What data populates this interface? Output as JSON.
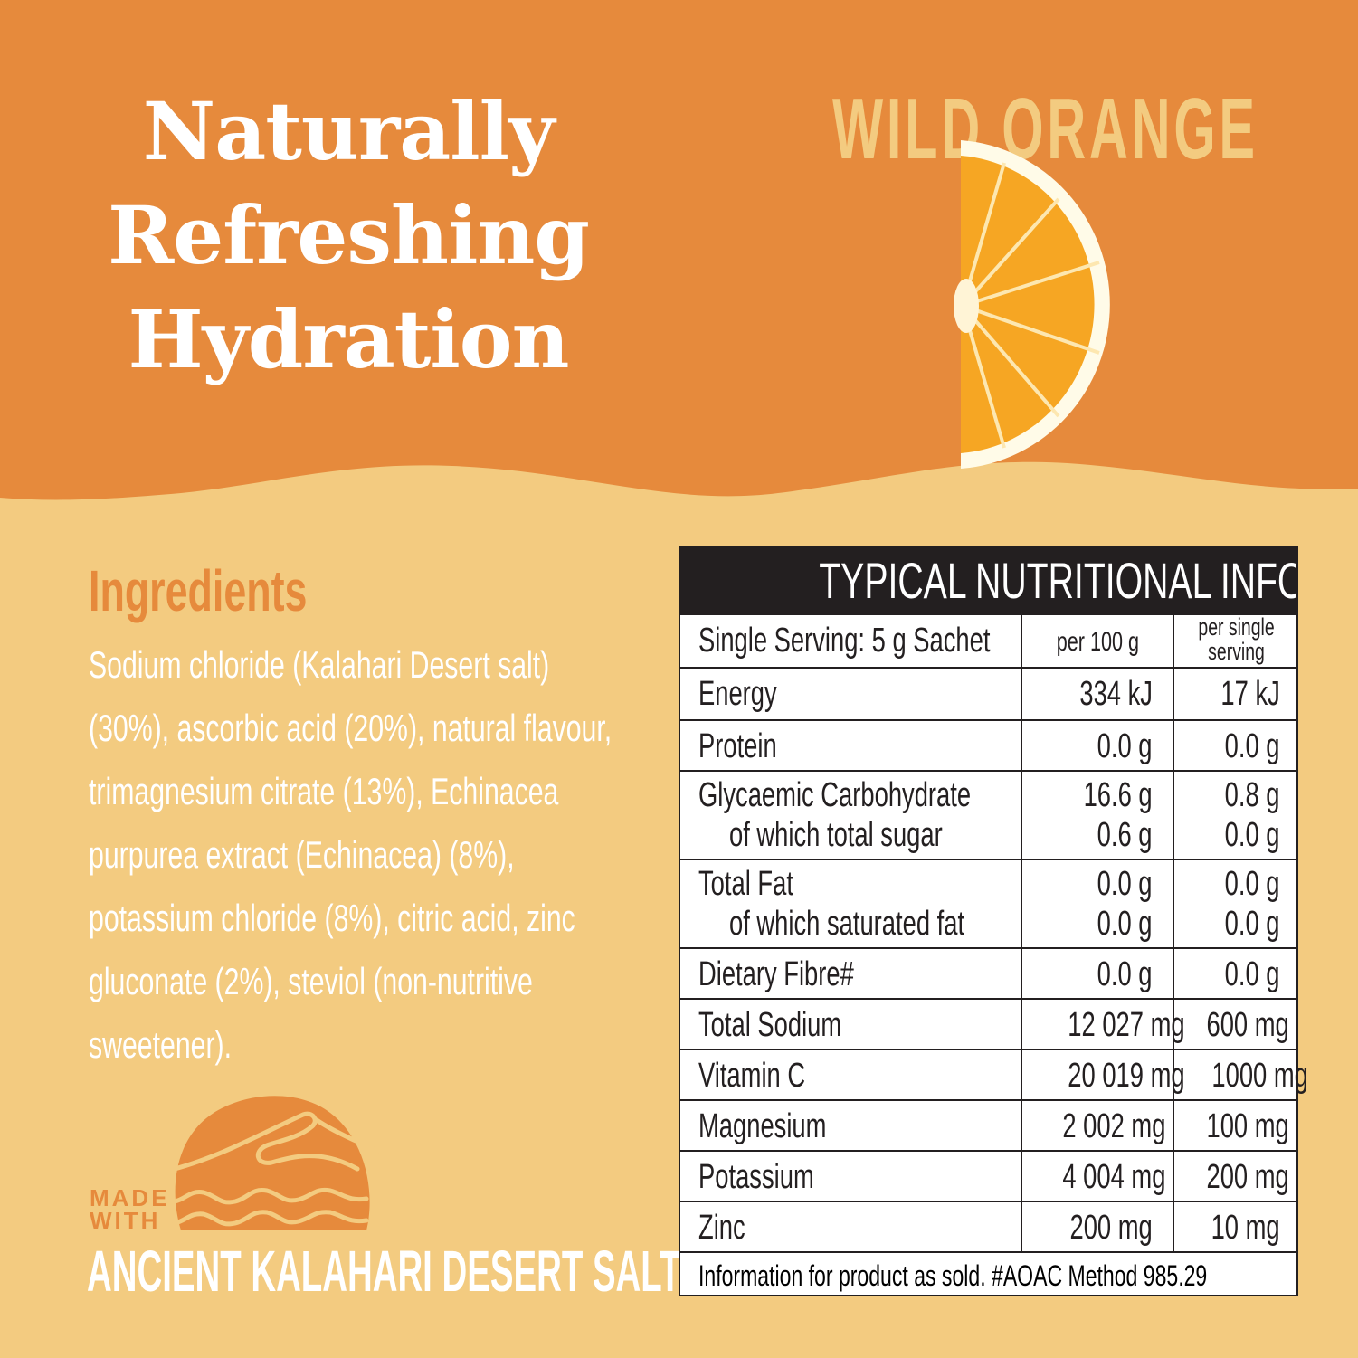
{
  "colors": {
    "orange": "#E68A3C",
    "sand": "#F3CB80",
    "dark": "#231F20",
    "white": "#FFFFFF"
  },
  "headline": [
    "Naturally",
    "Refreshing",
    "Hydration"
  ],
  "flavour": "WILD ORANGE",
  "image": "orange-slice-half",
  "ingredients": {
    "title": "Ingredients",
    "text": "Sodium chloride (Kalahari Desert salt) (30%), ascorbic acid (20%), natural flavour, trimagnesium citrate (13%), Echinacea purpurea extract (Echinacea) (8%), potassium chloride (8%), citric acid, zinc gluconate (2%), steviol (non-nutritive sweetener)."
  },
  "badge": {
    "made_with": [
      "MADE",
      "WITH"
    ],
    "tagline": "ANCIENT KALAHARI DESERT SALT",
    "icon": "sun-dune-waves-logo"
  },
  "nutrition": {
    "title": "TYPICAL NUTRITIONAL INFORMATION",
    "header": {
      "label": "Single Serving: 5 g Sachet",
      "per100": "per 100 g",
      "perServing": [
        "per single",
        "serving"
      ]
    },
    "rows": [
      {
        "label": [
          "Energy"
        ],
        "per100": [
          "334 kJ"
        ],
        "perServing": [
          "17 kJ"
        ]
      },
      {
        "label": [
          "Protein"
        ],
        "per100": [
          "0.0 g"
        ],
        "perServing": [
          "0.0 g"
        ]
      },
      {
        "label": [
          "Glycaemic Carbohydrate",
          "of which total sugar"
        ],
        "per100": [
          "16.6 g",
          "0.6 g"
        ],
        "perServing": [
          "0.8 g",
          "0.0 g"
        ]
      },
      {
        "label": [
          "Total Fat",
          "of which saturated fat"
        ],
        "per100": [
          "0.0 g",
          "0.0 g"
        ],
        "perServing": [
          "0.0 g",
          "0.0 g"
        ]
      },
      {
        "label": [
          "Dietary Fibre#"
        ],
        "per100": [
          "0.0 g"
        ],
        "perServing": [
          "0.0 g"
        ]
      },
      {
        "label": [
          "Total Sodium"
        ],
        "per100": [
          "12 027 mg"
        ],
        "perServing": [
          "600 mg"
        ]
      },
      {
        "label": [
          "Vitamin C"
        ],
        "per100": [
          "20 019 mg"
        ],
        "perServing": [
          "1000 mg"
        ]
      },
      {
        "label": [
          "Magnesium"
        ],
        "per100": [
          "2 002 mg"
        ],
        "perServing": [
          "100 mg"
        ]
      },
      {
        "label": [
          "Potassium"
        ],
        "per100": [
          "4 004 mg"
        ],
        "perServing": [
          "200 mg"
        ]
      },
      {
        "label": [
          "Zinc"
        ],
        "per100": [
          "200 mg"
        ],
        "perServing": [
          "10 mg"
        ]
      }
    ],
    "footnote": "Information for product as sold. #AOAC Method 985.29"
  }
}
